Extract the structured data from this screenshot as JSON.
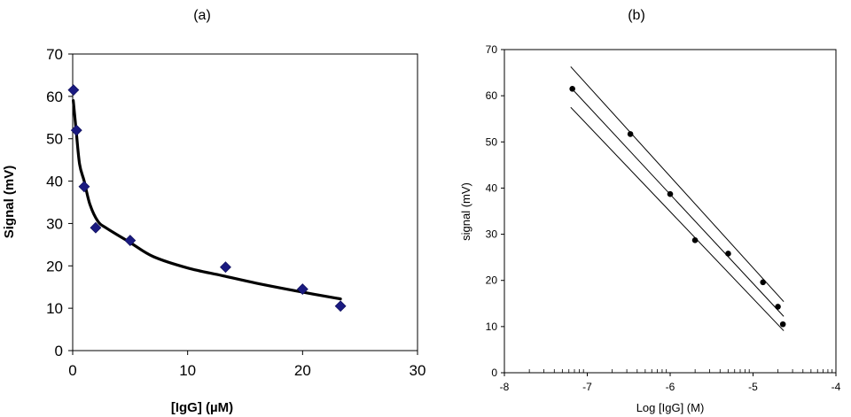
{
  "chart_data": [
    {
      "panel_label": "(a)",
      "type": "scatter",
      "xlabel": "[IgG] (µM)",
      "ylabel": "Signal (mV)",
      "xlim": [
        0,
        30
      ],
      "ylim": [
        0,
        70
      ],
      "x_ticks": [
        0,
        10,
        20,
        30
      ],
      "y_ticks": [
        0,
        10,
        20,
        30,
        40,
        50,
        60,
        70
      ],
      "grid": false,
      "marker": "diamond",
      "marker_color": "#1a1a80",
      "series": [
        {
          "points": [
            {
              "x": 0.07,
              "y": 61.5
            },
            {
              "x": 0.33,
              "y": 52.0
            },
            {
              "x": 1.0,
              "y": 38.7
            },
            {
              "x": 2.0,
              "y": 29.0
            },
            {
              "x": 5.0,
              "y": 26.0
            },
            {
              "x": 13.3,
              "y": 19.7
            },
            {
              "x": 20.0,
              "y": 14.5
            },
            {
              "x": 23.3,
              "y": 10.5
            }
          ]
        }
      ],
      "fit_curve": {
        "type": "smooth",
        "color": "#000000",
        "points": [
          {
            "x": 0.05,
            "y": 59.0
          },
          {
            "x": 0.3,
            "y": 52.0
          },
          {
            "x": 0.6,
            "y": 44.0
          },
          {
            "x": 1.0,
            "y": 40.0
          },
          {
            "x": 1.5,
            "y": 34.5
          },
          {
            "x": 2.2,
            "y": 30.5
          },
          {
            "x": 3.0,
            "y": 28.8
          },
          {
            "x": 5.0,
            "y": 25.5
          },
          {
            "x": 7.0,
            "y": 22.2
          },
          {
            "x": 10.0,
            "y": 19.5
          },
          {
            "x": 13.0,
            "y": 17.7
          },
          {
            "x": 16.0,
            "y": 15.9
          },
          {
            "x": 20.0,
            "y": 13.8
          },
          {
            "x": 23.3,
            "y": 12.2
          }
        ]
      }
    },
    {
      "panel_label": "(b)",
      "type": "scatter",
      "xlabel": "Log [IgG] (M)",
      "ylabel": "signal (mV)",
      "xlim": [
        -8,
        -4
      ],
      "ylim": [
        0,
        70
      ],
      "x_ticks": [
        -8,
        -7,
        -6,
        -5,
        -4
      ],
      "y_ticks": [
        0,
        10,
        20,
        30,
        40,
        50,
        60,
        70
      ],
      "grid": false,
      "marker": "circle",
      "marker_color": "#000000",
      "series": [
        {
          "points": [
            {
              "x": -7.18,
              "y": 61.5
            },
            {
              "x": -6.48,
              "y": 51.7
            },
            {
              "x": -6.0,
              "y": 38.7
            },
            {
              "x": -5.7,
              "y": 28.7
            },
            {
              "x": -5.3,
              "y": 25.8
            },
            {
              "x": -4.88,
              "y": 19.6
            },
            {
              "x": -4.7,
              "y": 14.3
            },
            {
              "x": -4.64,
              "y": 10.5
            }
          ]
        }
      ],
      "regression_lines": [
        {
          "role": "upper",
          "x": [
            -7.2,
            -4.63
          ],
          "y": [
            66.3,
            15.4
          ]
        },
        {
          "role": "fit",
          "x": [
            -7.2,
            -4.63
          ],
          "y": [
            61.8,
            12.2
          ]
        },
        {
          "role": "lower",
          "x": [
            -7.2,
            -4.63
          ],
          "y": [
            57.5,
            9.1
          ]
        }
      ],
      "minor_ticks_on_x_axis_at_y0": [
        -7.699,
        -7.523,
        -7.398,
        -7.301,
        -7.222,
        -7.155,
        -7.097,
        -7.046,
        -6.699,
        -6.523,
        -6.398,
        -6.301,
        -6.222,
        -6.155,
        -6.097,
        -6.046,
        -5.699,
        -5.523,
        -5.398,
        -5.301,
        -5.222,
        -5.155,
        -5.097,
        -5.046,
        -4.699,
        -4.523,
        -4.398,
        -4.301,
        -4.222,
        -4.155,
        -4.097,
        -4.046
      ]
    }
  ]
}
